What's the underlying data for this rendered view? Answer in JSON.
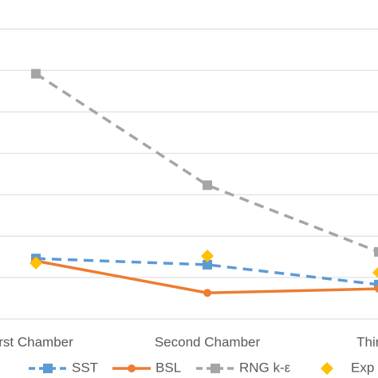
{
  "chart_data": {
    "type": "line",
    "categories": [
      "rst Chamber",
      "Second Chamber",
      "Third C"
    ],
    "series": [
      {
        "name": "SST",
        "color": "#5b9bd5",
        "style": "dashed",
        "marker": "square",
        "values": [
          1.46,
          1.31,
          0.83
        ]
      },
      {
        "name": "BSL",
        "color": "#ed7d31",
        "style": "solid",
        "marker": "circle",
        "values": [
          1.4,
          0.63,
          0.73
        ]
      },
      {
        "name": "RNG k-ε",
        "color": "#a5a5a5",
        "style": "dashed",
        "marker": "square",
        "values": [
          5.92,
          3.23,
          1.62
        ]
      },
      {
        "name": "Exp",
        "color": "#ffc000",
        "style": "none",
        "marker": "diamond",
        "values": [
          1.35,
          1.52,
          1.12
        ]
      }
    ],
    "ylim": [
      0,
      7.7
    ],
    "yticks": [
      0,
      1,
      2,
      3,
      4,
      5,
      6,
      7
    ],
    "grid": true
  }
}
